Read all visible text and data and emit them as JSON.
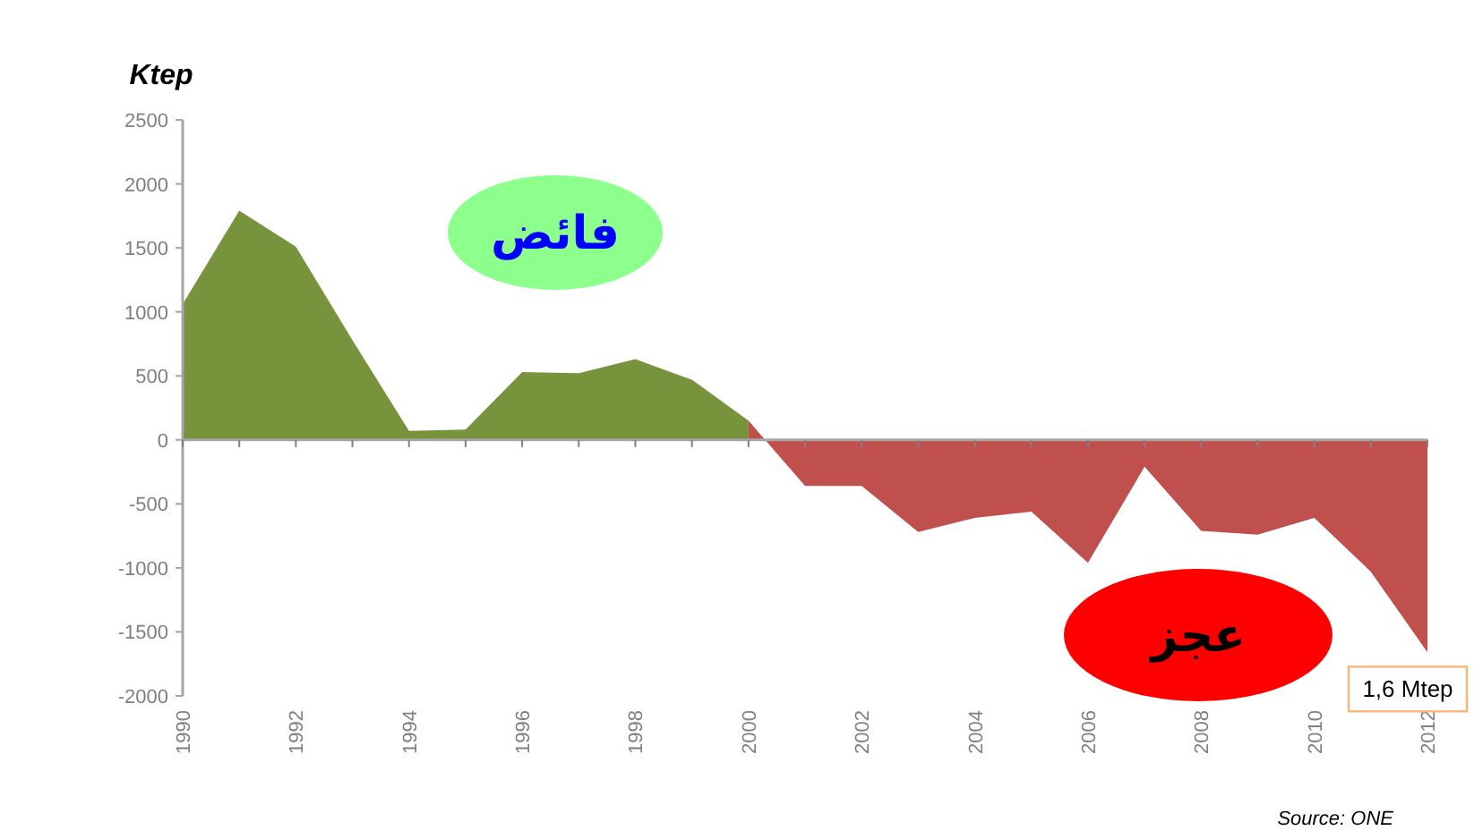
{
  "chart_data": {
    "type": "area",
    "ylabel": "Ktep",
    "categories": [
      "1990",
      null,
      "1992",
      null,
      "1994",
      null,
      "1996",
      null,
      "1998",
      null,
      "2000",
      null,
      "2002",
      null,
      "2004",
      null,
      "2006",
      null,
      "2008",
      null,
      "2010",
      null,
      "2012"
    ],
    "series": [
      {
        "color": "#77933c",
        "values": [
          1060,
          1790,
          1510,
          780,
          70,
          80,
          530,
          520,
          630,
          470,
          150,
          null,
          null,
          null,
          null,
          null,
          null,
          null,
          null,
          null,
          null,
          null,
          null
        ]
      },
      {
        "color": "#c0504d",
        "values": [
          null,
          null,
          null,
          null,
          null,
          null,
          null,
          null,
          null,
          null,
          150,
          -360,
          -360,
          -720,
          -610,
          -560,
          -960,
          -210,
          -710,
          -740,
          -610,
          -1030,
          -1660
        ]
      }
    ],
    "ylim": [
      -2000,
      2500
    ],
    "yticks": [
      -2000,
      -1500,
      -1000,
      -500,
      0,
      500,
      1000,
      1500,
      2000,
      2500
    ],
    "annotations": [
      "فائض",
      "عجز",
      {
        "text": "1,6 Mtep",
        "x": "2012",
        "y": -1660
      },
      "Source: ONE"
    ]
  }
}
